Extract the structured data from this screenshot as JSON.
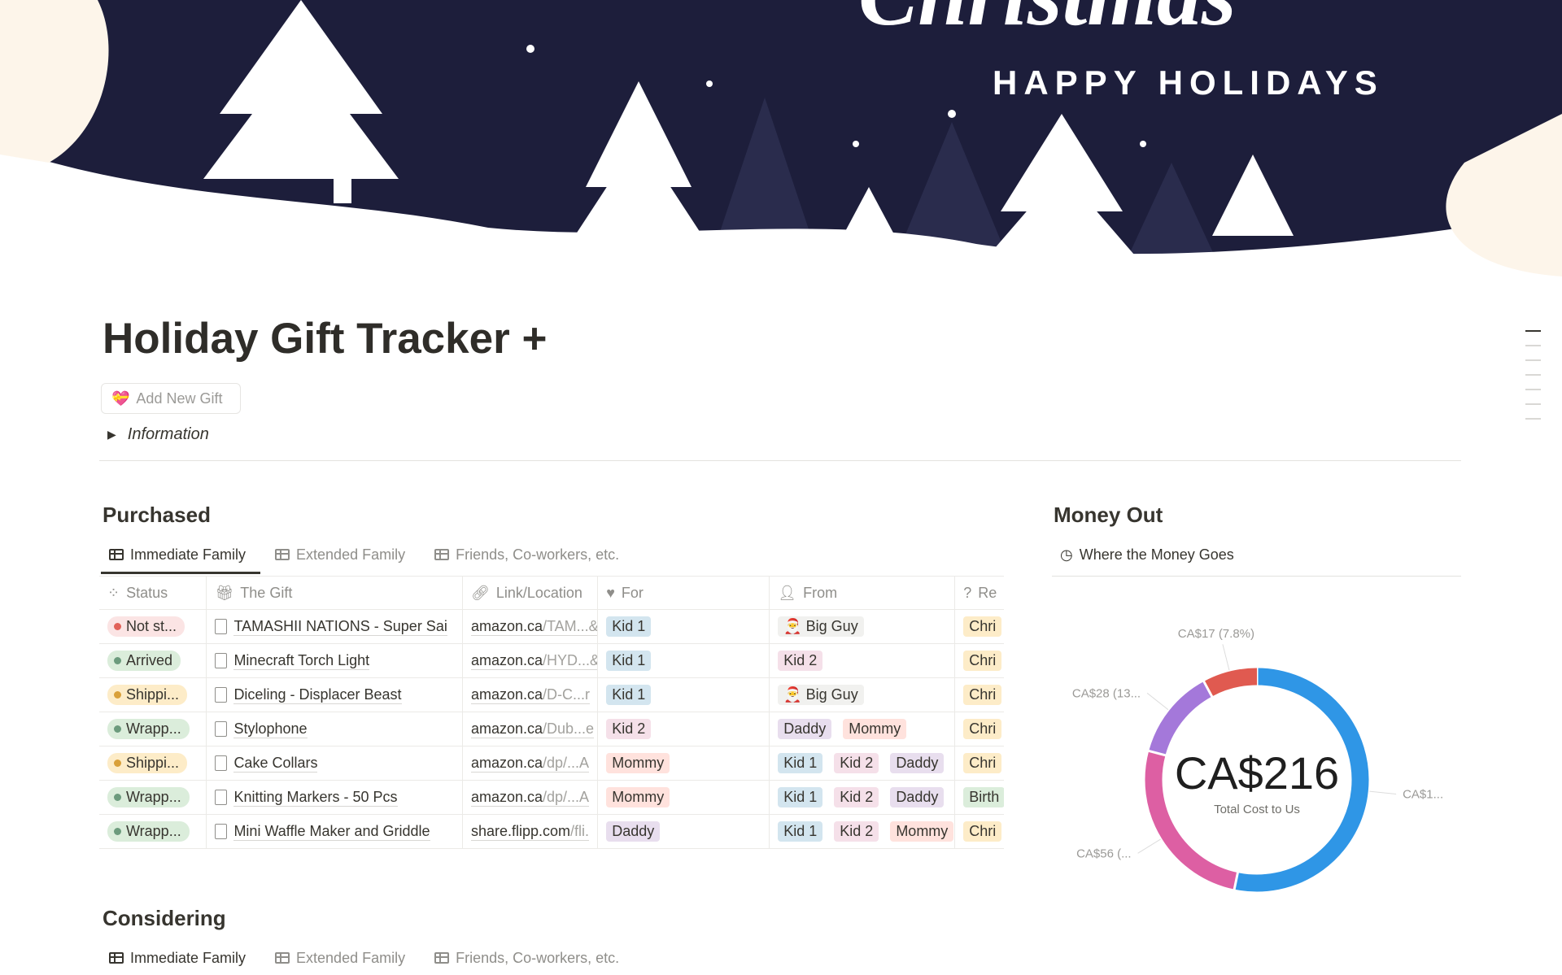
{
  "banner": {
    "script_text": "Christmas",
    "subtitle": "HAPPY HOLIDAYS"
  },
  "page": {
    "title": "Holiday Gift Tracker +",
    "add_button": "Add New Gift",
    "toggle": "Information"
  },
  "purchased": {
    "heading": "Purchased",
    "tabs": [
      "Immediate Family",
      "Extended Family",
      "Friends, Co-workers, etc."
    ],
    "columns": [
      "Status",
      "The Gift",
      "Link/Location",
      "For",
      "From",
      "Re"
    ],
    "rows": [
      {
        "status": "Not st...",
        "status_color": "#e16259",
        "status_bg": "#fbe4e4",
        "gift": "TAMASHII NATIONS - Super Sai",
        "domain": "amazon.ca",
        "path": "/TAM...&",
        "for": [
          "Kid 1"
        ],
        "from": [
          "🎅 Big Guy"
        ],
        "reason": "Chri"
      },
      {
        "status": "Arrived",
        "status_color": "#6c9b7d",
        "status_bg": "#dbeddb",
        "gift": "Minecraft Torch Light",
        "domain": "amazon.ca",
        "path": "/HYD...&",
        "for": [
          "Kid 1"
        ],
        "from": [
          "Kid 2"
        ],
        "reason": "Chri"
      },
      {
        "status": "Shippi...",
        "status_color": "#d9a03a",
        "status_bg": "#fdecc8",
        "gift": "Diceling - Displacer Beast",
        "domain": "amazon.ca",
        "path": "/D-C...r",
        "for": [
          "Kid 1"
        ],
        "from": [
          "🎅 Big Guy"
        ],
        "reason": "Chri"
      },
      {
        "status": "Wrapp...",
        "status_color": "#6c9b7d",
        "status_bg": "#dbeddb",
        "gift": "Stylophone",
        "domain": "amazon.ca",
        "path": "/Dub...e",
        "for": [
          "Kid 2"
        ],
        "from": [
          "Daddy",
          "Mommy"
        ],
        "reason": "Chri"
      },
      {
        "status": "Shippi...",
        "status_color": "#d9a03a",
        "status_bg": "#fdecc8",
        "gift": "Cake Collars",
        "domain": "amazon.ca",
        "path": "/dp/...A",
        "for": [
          "Mommy"
        ],
        "from": [
          "Kid 1",
          "Kid 2",
          "Daddy"
        ],
        "reason": "Chri"
      },
      {
        "status": "Wrapp...",
        "status_color": "#6c9b7d",
        "status_bg": "#dbeddb",
        "gift": "Knitting Markers - 50 Pcs",
        "domain": "amazon.ca",
        "path": "/dp/...A",
        "for": [
          "Mommy"
        ],
        "from": [
          "Kid 1",
          "Kid 2",
          "Daddy"
        ],
        "reason": "Birth"
      },
      {
        "status": "Wrapp...",
        "status_color": "#6c9b7d",
        "status_bg": "#dbeddb",
        "gift": "Mini Waffle Maker and Griddle",
        "domain": "share.flipp.com",
        "path": "/fli.",
        "for": [
          "Daddy"
        ],
        "from": [
          "Kid 1",
          "Kid 2",
          "Mommy"
        ],
        "reason": "Chri"
      }
    ],
    "tag_colors": {
      "Kid 1": "#d3e5ef",
      "Kid 2": "#f5e0e9",
      "Mommy": "#ffe2dd",
      "Daddy": "#e8deee",
      "🎅 Big Guy": "#f1f1ef",
      "Chri": "#fdecc8",
      "Birth": "#dbeddb"
    }
  },
  "money": {
    "heading": "Money Out",
    "tab": "Where the Money Goes"
  },
  "chart_data": {
    "type": "pie",
    "donut": true,
    "center_value": "CA$216",
    "center_label": "Total Cost to Us",
    "values": [
      115,
      56,
      28,
      17
    ],
    "labels": [
      "CA$1...",
      "CA$56 (...",
      "CA$28 (13...",
      "CA$17 (7.8%)"
    ],
    "colors": [
      "#2f96e6",
      "#dd5fa3",
      "#a478da",
      "#e05a50"
    ]
  },
  "considering": {
    "heading": "Considering",
    "tabs": [
      "Immediate Family",
      "Extended Family",
      "Friends, Co-workers, etc."
    ]
  }
}
